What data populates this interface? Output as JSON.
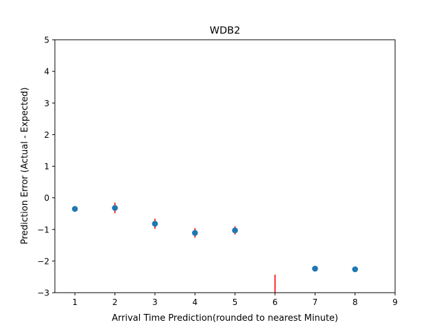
{
  "chart_data": {
    "type": "scatter",
    "title": "WDB2",
    "xlabel": "Arrival Time Prediction(rounded to nearest Minute)",
    "ylabel": "Prediction Error (Actual - Expected)",
    "xlim": [
      0.5,
      9
    ],
    "ylim": [
      -3,
      5
    ],
    "xticks": [
      "1",
      "2",
      "3",
      "4",
      "5",
      "6",
      "7",
      "8",
      "9"
    ],
    "yticks": [
      "−3",
      "−2",
      "−1",
      "0",
      "1",
      "2",
      "3",
      "4",
      "5"
    ],
    "grid": false,
    "legend": "none",
    "series": [
      {
        "marker_color": "#1f77b4",
        "errorbar_color": "#ff0000",
        "points": [
          {
            "x": 1,
            "y": -0.35,
            "err": 0.05
          },
          {
            "x": 2,
            "y": -0.32,
            "err": 0.17
          },
          {
            "x": 3,
            "y": -0.82,
            "err": 0.16
          },
          {
            "x": 4,
            "y": -1.11,
            "err": 0.15
          },
          {
            "x": 5,
            "y": -1.03,
            "err": 0.13
          },
          {
            "x": 6,
            "y": null,
            "err_low": -3.0,
            "err_high": -2.43
          },
          {
            "x": 7,
            "y": -2.24,
            "err": 0.07
          },
          {
            "x": 8,
            "y": -2.26,
            "err": 0.0
          }
        ]
      }
    ]
  }
}
